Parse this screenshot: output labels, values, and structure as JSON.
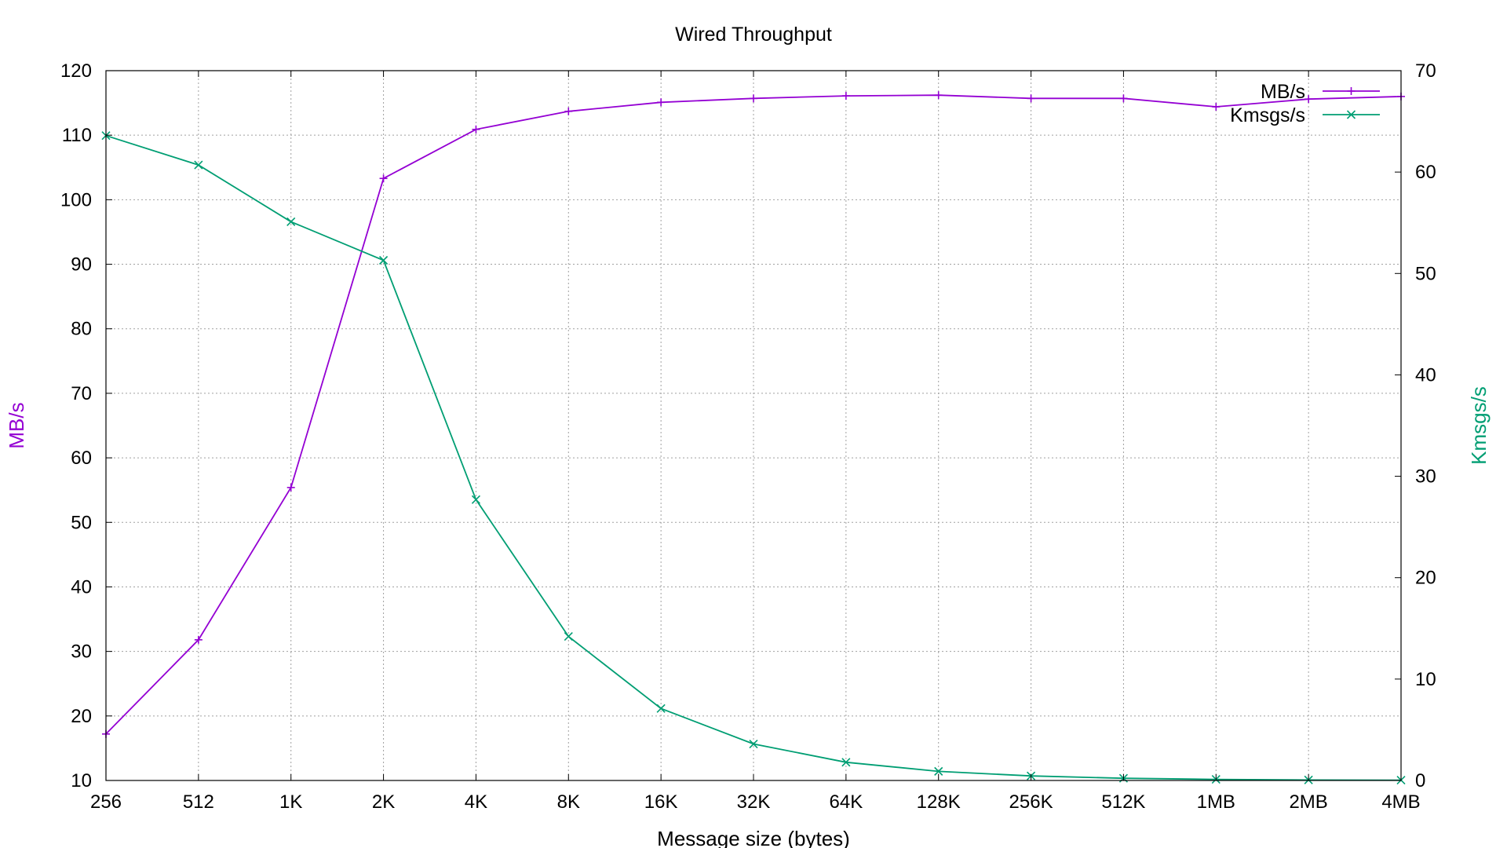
{
  "chart_data": {
    "type": "line",
    "title": "Wired Throughput",
    "xlabel": "Message size (bytes)",
    "ylabel": "MB/s",
    "y2label": "Kmsgs/s",
    "categories": [
      "256",
      "512",
      "1K",
      "2K",
      "4K",
      "8K",
      "16K",
      "32K",
      "64K",
      "128K",
      "256K",
      "512K",
      "1MB",
      "2MB",
      "4MB"
    ],
    "ylim": [
      10,
      120
    ],
    "y_ticks": [
      10,
      20,
      30,
      40,
      50,
      60,
      70,
      80,
      90,
      100,
      110,
      120
    ],
    "y2lim": [
      0,
      70
    ],
    "y2_ticks": [
      0,
      10,
      20,
      30,
      40,
      50,
      60,
      70
    ],
    "grid": true,
    "legend_position": "top-right",
    "series": [
      {
        "name": "MB/s",
        "axis": "left",
        "color": "#9400d3",
        "marker": "plus",
        "values": [
          17.2,
          31.8,
          55.4,
          103.3,
          110.9,
          113.7,
          115.1,
          115.7,
          116.1,
          116.2,
          115.7,
          115.7,
          114.4,
          115.6,
          116.0
        ]
      },
      {
        "name": "Kmsgs/s",
        "axis": "right",
        "color": "#009e73",
        "marker": "cross",
        "values": [
          63.6,
          60.7,
          55.1,
          51.3,
          27.7,
          14.2,
          7.1,
          3.6,
          1.8,
          0.9,
          0.45,
          0.22,
          0.11,
          0.05,
          0.03
        ]
      }
    ]
  }
}
